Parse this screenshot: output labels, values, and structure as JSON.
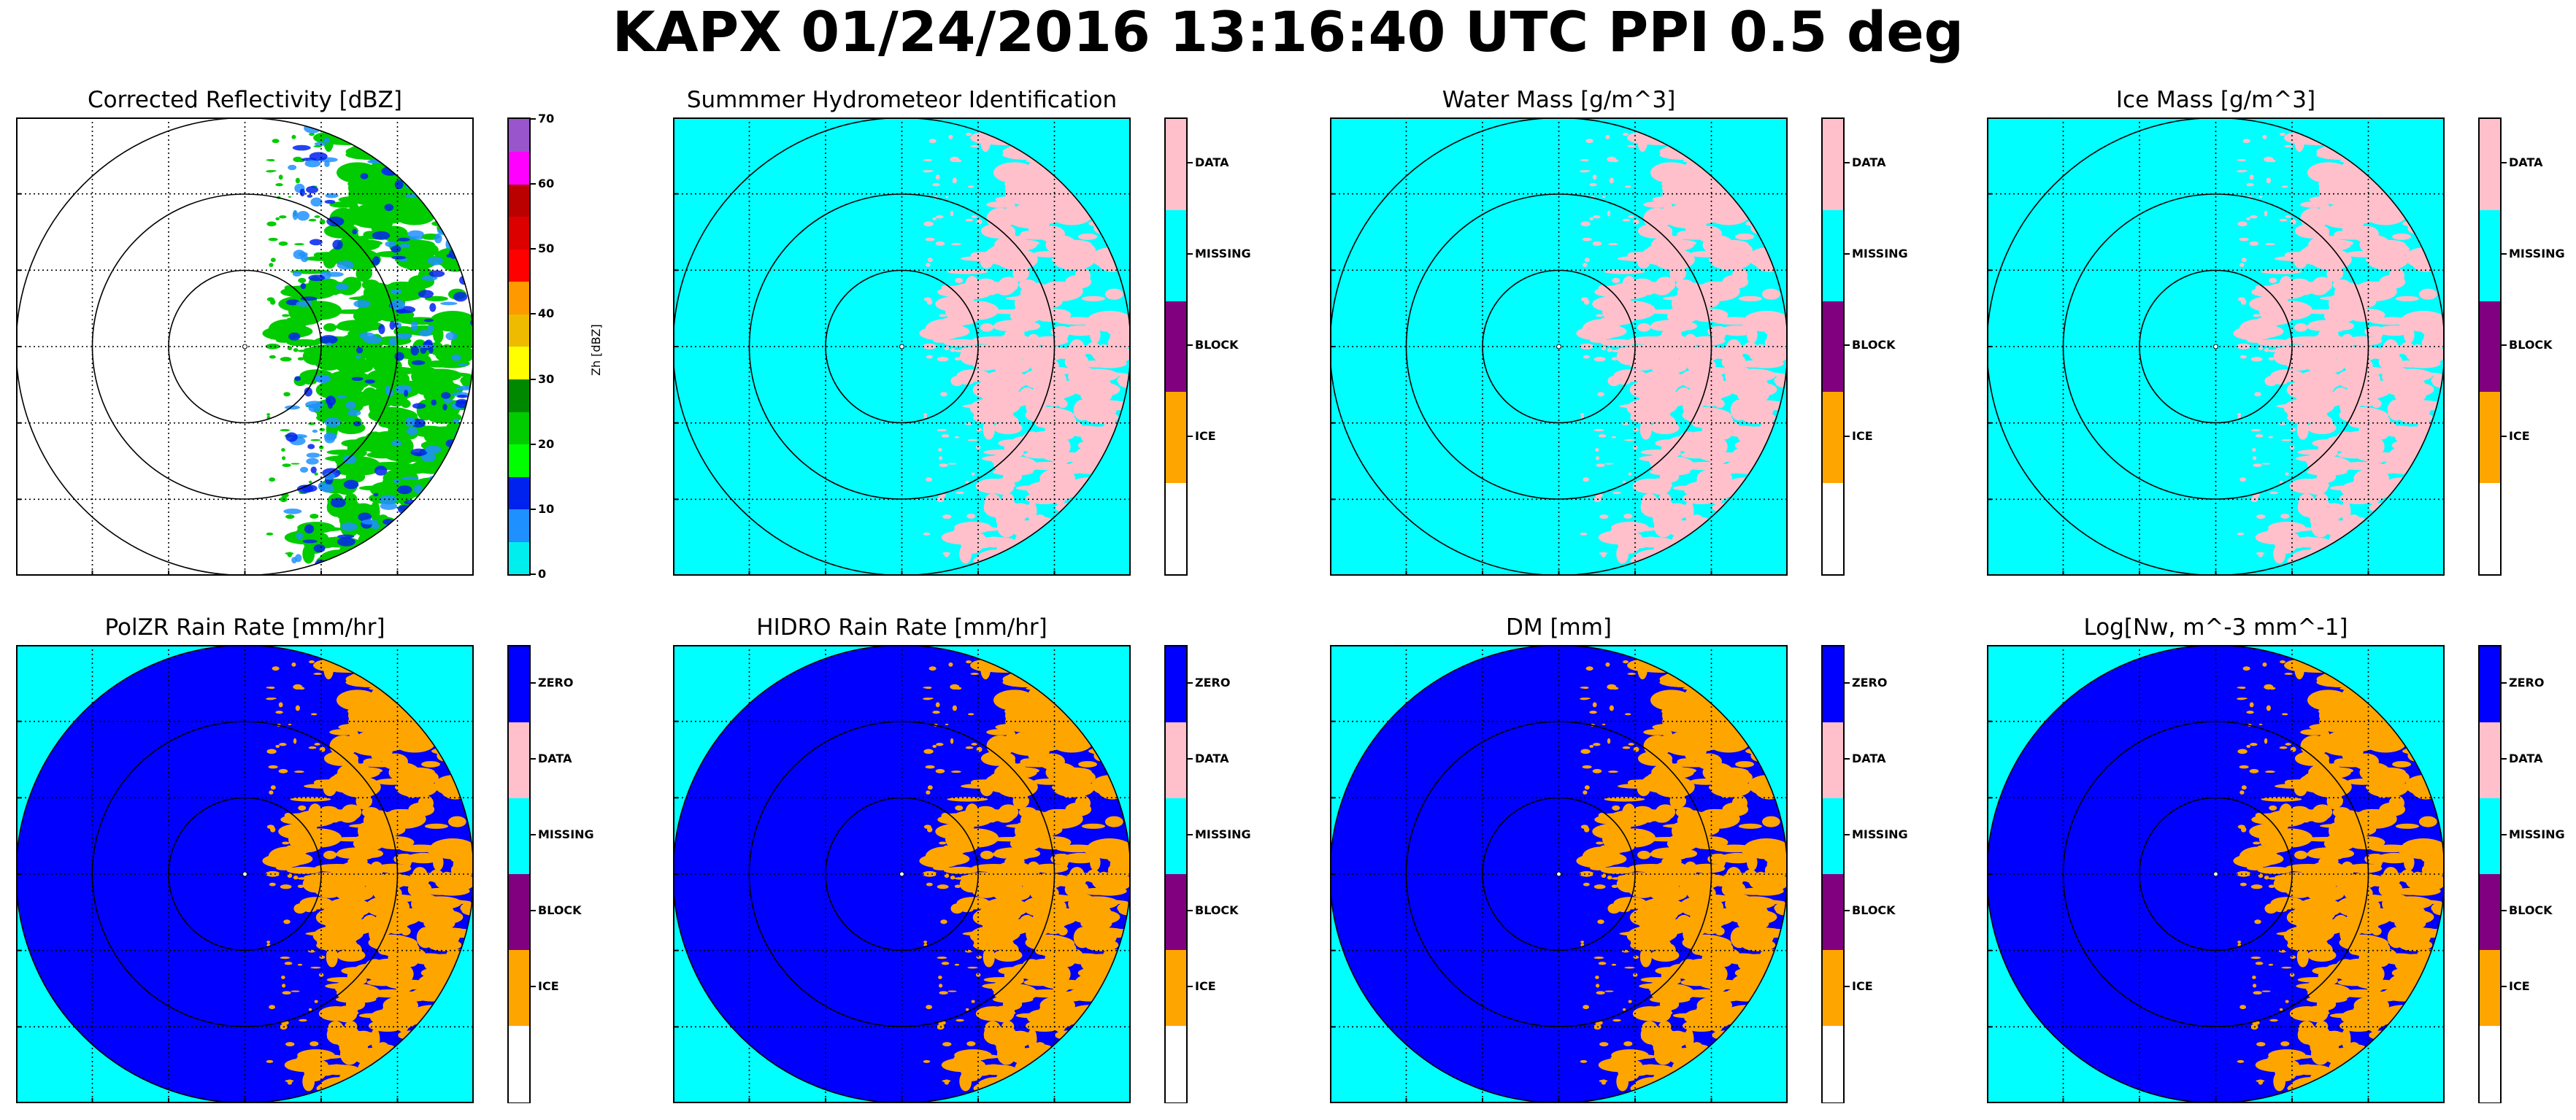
{
  "figure": {
    "suptitle": "KAPX 01/24/2016 13:16:40 UTC PPI 0.5 deg"
  },
  "panels": [
    {
      "title": "Corrected Reflectivity [dBZ]",
      "kind": "reflectivity",
      "background": "#ffffff",
      "colorbar": {
        "type": "continuous",
        "label": "Zh [dBZ]",
        "ticks": [
          "0",
          "10",
          "20",
          "30",
          "40",
          "50",
          "60",
          "70"
        ],
        "colors": [
          "#00eeee",
          "#1e90ff",
          "#0022ee",
          "#00ff00",
          "#00cc00",
          "#008800",
          "#ffff00",
          "#eebb00",
          "#ff9900",
          "#ff0000",
          "#dd0000",
          "#bb0000",
          "#ff00ff",
          "#9955cc"
        ]
      }
    },
    {
      "title": "Summmer Hydrometeor Identification",
      "kind": "categorical-top",
      "background": "#00ffff",
      "colorbar": {
        "type": "categorical",
        "labels": [
          "DATA",
          "MISSING",
          "BLOCK",
          "ICE"
        ],
        "colors": [
          "#ffc0cb",
          "#00ffff",
          "#800080",
          "#ffa500",
          "#ffffff"
        ]
      }
    },
    {
      "title": "Water Mass [g/m^3]",
      "kind": "categorical-top",
      "background": "#00ffff",
      "colorbar": {
        "type": "categorical",
        "labels": [
          "DATA",
          "MISSING",
          "BLOCK",
          "ICE"
        ],
        "colors": [
          "#ffc0cb",
          "#00ffff",
          "#800080",
          "#ffa500",
          "#ffffff"
        ]
      }
    },
    {
      "title": "Ice Mass [g/m^3]",
      "kind": "categorical-top",
      "background": "#00ffff",
      "colorbar": {
        "type": "categorical",
        "labels": [
          "DATA",
          "MISSING",
          "BLOCK",
          "ICE"
        ],
        "colors": [
          "#ffc0cb",
          "#00ffff",
          "#800080",
          "#ffa500",
          "#ffffff"
        ]
      }
    },
    {
      "title": "PolZR Rain Rate [mm/hr]",
      "kind": "categorical-bottom",
      "background": "#00ffff",
      "colorbar": {
        "type": "categorical",
        "labels": [
          "ZERO",
          "DATA",
          "MISSING",
          "BLOCK",
          "ICE"
        ],
        "colors": [
          "#0000ff",
          "#ffc0cb",
          "#00ffff",
          "#800080",
          "#ffa500",
          "#ffffff"
        ]
      }
    },
    {
      "title": "HIDRO Rain Rate [mm/hr]",
      "kind": "categorical-bottom",
      "background": "#00ffff",
      "colorbar": {
        "type": "categorical",
        "labels": [
          "ZERO",
          "DATA",
          "MISSING",
          "BLOCK",
          "ICE"
        ],
        "colors": [
          "#0000ff",
          "#ffc0cb",
          "#00ffff",
          "#800080",
          "#ffa500",
          "#ffffff"
        ]
      }
    },
    {
      "title": "DM [mm]",
      "kind": "categorical-bottom",
      "background": "#00ffff",
      "colorbar": {
        "type": "categorical",
        "labels": [
          "ZERO",
          "DATA",
          "MISSING",
          "BLOCK",
          "ICE"
        ],
        "colors": [
          "#0000ff",
          "#ffc0cb",
          "#00ffff",
          "#800080",
          "#ffa500",
          "#ffffff"
        ]
      }
    },
    {
      "title": "Log[Nw, m^-3 mm^-1]",
      "kind": "categorical-bottom",
      "background": "#00ffff",
      "colorbar": {
        "type": "categorical",
        "labels": [
          "ZERO",
          "DATA",
          "MISSING",
          "BLOCK",
          "ICE"
        ],
        "colors": [
          "#0000ff",
          "#ffc0cb",
          "#00ffff",
          "#800080",
          "#ffa500",
          "#ffffff"
        ]
      }
    }
  ],
  "chart_data": {
    "type": "heatmap",
    "description_of_fields": "8 radar PPI panels, each showing a range-ring polar plot with dotted lat/lon grid",
    "grid": true,
    "range_rings": 3,
    "echo_region": "eastern side of radar (right of center)",
    "echo_colors": {
      "reflectivity": "#00cc00",
      "categorical-top": "#ffc0cb",
      "categorical-bottom": "#ffa500"
    },
    "disk_fill": {
      "reflectivity": "#ffffff",
      "categorical-top": "#00ffff",
      "categorical-bottom": "#0000ff"
    }
  }
}
